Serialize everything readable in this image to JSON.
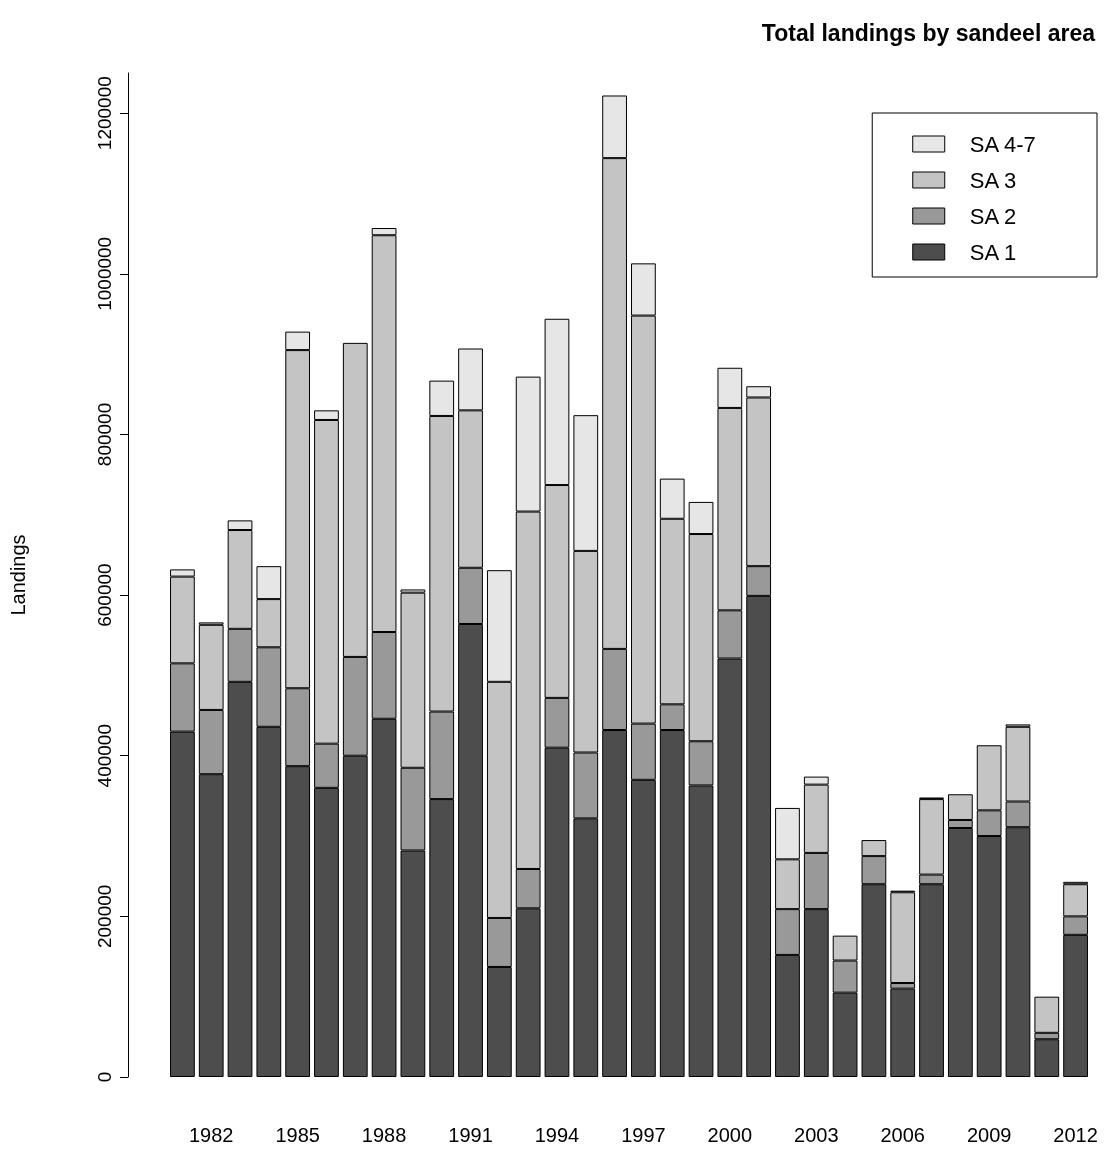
{
  "chart_data": {
    "type": "bar",
    "title": "Total landings by sandeel area",
    "ylabel": "Landings",
    "stacked": true,
    "categories": [
      null,
      "1982",
      null,
      null,
      "1985",
      null,
      null,
      "1988",
      null,
      null,
      "1991",
      null,
      null,
      "1994",
      null,
      null,
      "1997",
      null,
      null,
      "2000",
      null,
      null,
      "2003",
      null,
      null,
      "2006",
      null,
      null,
      "2009",
      null,
      null,
      "2012"
    ],
    "series": [
      {
        "name": "SA 1",
        "color": "#4d4d4d",
        "values": [
          430000,
          377000,
          492000,
          436000,
          387000,
          360000,
          400000,
          446000,
          282000,
          346000,
          564000,
          137000,
          210000,
          410000,
          322000,
          432000,
          370000,
          432000,
          363000,
          521000,
          599000,
          152000,
          209000,
          105000,
          240000,
          110000,
          240000,
          310000,
          300000,
          311000,
          47000,
          177000
        ]
      },
      {
        "name": "SA 2",
        "color": "#999999",
        "values": [
          85000,
          80000,
          66000,
          99000,
          97000,
          55000,
          123000,
          108000,
          103000,
          109000,
          70000,
          61000,
          49000,
          62000,
          82000,
          101000,
          70000,
          32000,
          55000,
          60000,
          37000,
          57000,
          70000,
          40000,
          35000,
          7000,
          12000,
          10000,
          32000,
          32000,
          8000,
          23000
        ]
      },
      {
        "name": "SA 3",
        "color": "#c4c4c4",
        "values": [
          108000,
          106000,
          123000,
          60000,
          421000,
          403000,
          391000,
          494000,
          218000,
          368000,
          196000,
          294000,
          445000,
          265000,
          251000,
          611000,
          508000,
          231000,
          258000,
          252000,
          210000,
          62000,
          85000,
          31000,
          20000,
          113000,
          94000,
          32000,
          81000,
          93000,
          45000,
          40000
        ]
      },
      {
        "name": "SA 4-7",
        "color": "#e6e6e6",
        "values": [
          9000,
          3000,
          12000,
          41000,
          23000,
          12000,
          0,
          9000,
          4000,
          44000,
          77000,
          139000,
          168000,
          207000,
          169000,
          78000,
          65000,
          50000,
          40000,
          50000,
          14000,
          64000,
          10000,
          null,
          0,
          2000,
          2000,
          0,
          0,
          3000,
          null,
          3000
        ]
      }
    ],
    "ylim": [
      0,
      1250000
    ],
    "yticks": [
      0,
      200000,
      400000,
      600000,
      800000,
      1000000,
      1200000
    ],
    "grid": false,
    "legend": "top right"
  }
}
